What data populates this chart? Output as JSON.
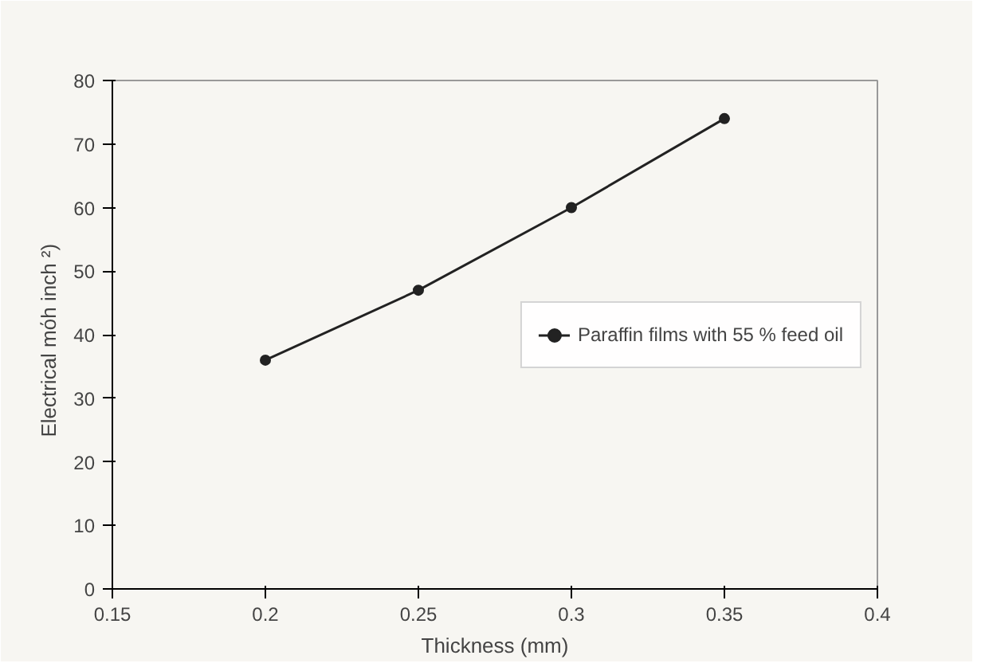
{
  "chart_data": {
    "type": "line",
    "xlabel": "Thickness (mm)",
    "ylabel": "Electrical  mόh  inch ²)",
    "x": [
      0.2,
      0.25,
      0.3,
      0.35
    ],
    "series": [
      {
        "name": "Paraffin films with 55 % feed oil",
        "color": "#222222",
        "values": [
          36,
          47,
          60,
          74
        ]
      }
    ],
    "xlim": [
      0.15,
      0.4
    ],
    "xticks": [
      0.15,
      0.2,
      0.25,
      0.3,
      0.35,
      0.4
    ],
    "ylim": [
      0,
      80
    ],
    "yticks": [
      0,
      10,
      20,
      30,
      40,
      50,
      60,
      70,
      80
    ],
    "marker": "circle",
    "line_style": "solid",
    "legend": "right",
    "grid": false
  }
}
